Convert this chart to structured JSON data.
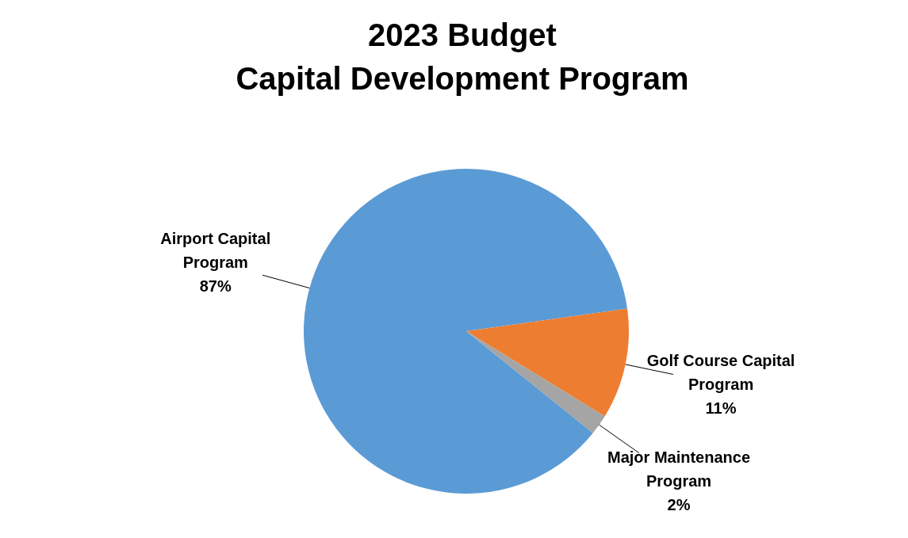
{
  "chart_data": {
    "type": "pie",
    "title": "2023 Budget\nCapital Development Program",
    "categories": [
      "Airport Capital Program",
      "Golf Course Capital Program",
      "Major Maintenance Program"
    ],
    "values": [
      87,
      11,
      2
    ],
    "colors": [
      "#5b9bd5",
      "#ed7d31",
      "#a5a5a5"
    ],
    "value_labels": [
      "87%",
      "11%",
      "2%"
    ],
    "legend": false
  }
}
